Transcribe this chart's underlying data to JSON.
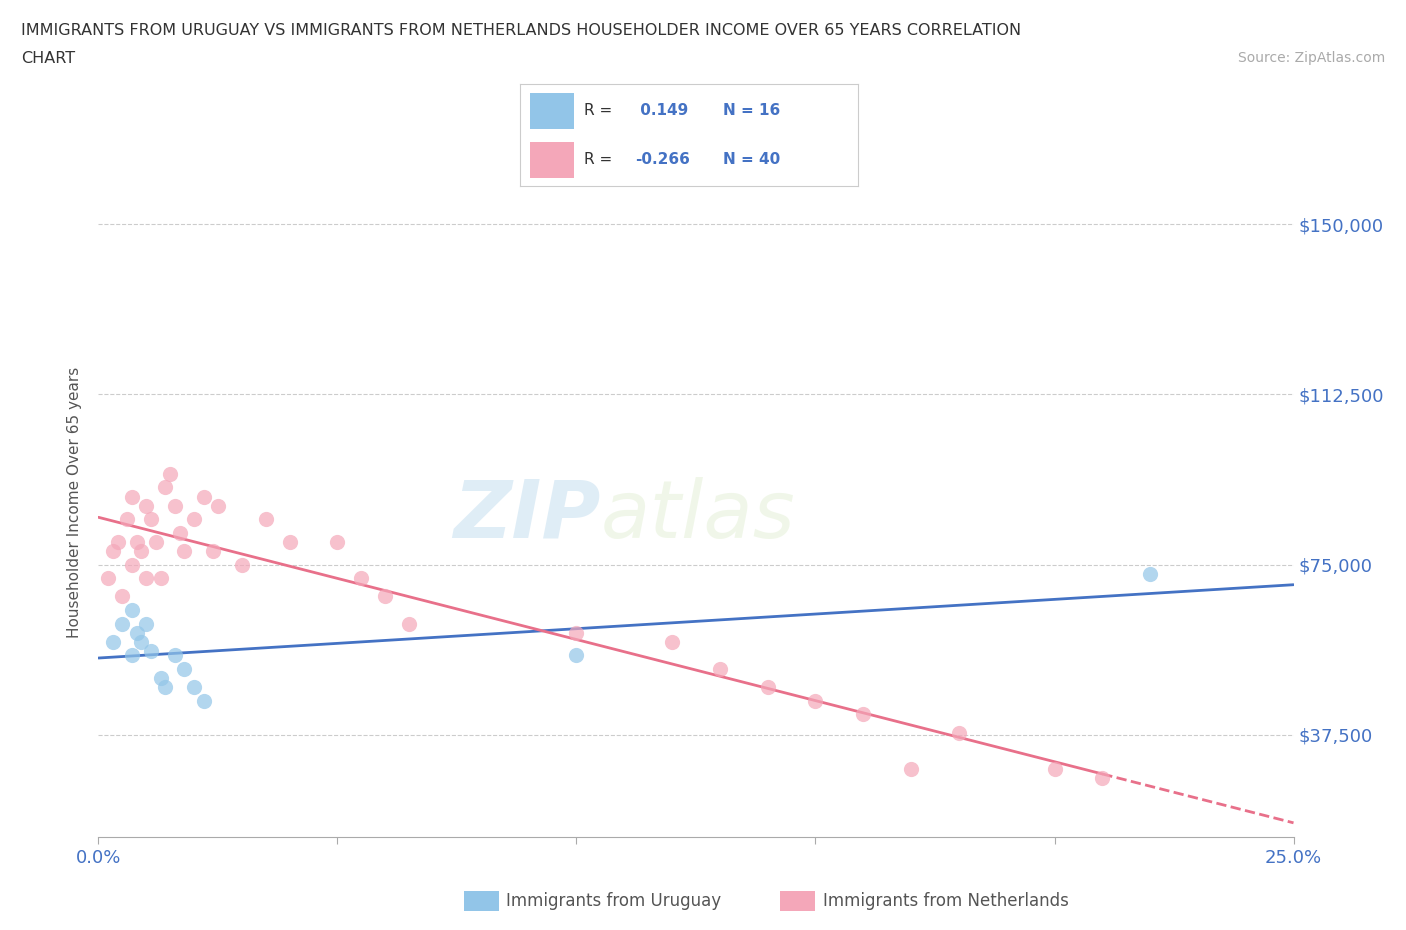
{
  "title_line1": "IMMIGRANTS FROM URUGUAY VS IMMIGRANTS FROM NETHERLANDS HOUSEHOLDER INCOME OVER 65 YEARS CORRELATION",
  "title_line2": "CHART",
  "source_text": "Source: ZipAtlas.com",
  "ylabel": "Householder Income Over 65 years",
  "xlim": [
    0.0,
    0.25
  ],
  "ylim": [
    15000,
    162500
  ],
  "xticks": [
    0.0,
    0.05,
    0.1,
    0.15,
    0.2,
    0.25
  ],
  "xticklabels": [
    "0.0%",
    "",
    "",
    "",
    "",
    "25.0%"
  ],
  "yticks": [
    37500,
    75000,
    112500,
    150000
  ],
  "yticklabels": [
    "$37,500",
    "$75,000",
    "$112,500",
    "$150,000"
  ],
  "color_uruguay": "#92c5e8",
  "color_netherlands": "#f4a7b9",
  "line_color_uruguay": "#4472c4",
  "line_color_netherlands": "#e8708a",
  "R_uruguay": 0.149,
  "N_uruguay": 16,
  "R_netherlands": -0.266,
  "N_netherlands": 40,
  "watermark_zip": "ZIP",
  "watermark_atlas": "atlas",
  "background_color": "#ffffff",
  "uruguay_scatter_x": [
    0.003,
    0.005,
    0.007,
    0.007,
    0.008,
    0.009,
    0.01,
    0.011,
    0.013,
    0.014,
    0.016,
    0.018,
    0.02,
    0.022,
    0.1,
    0.22
  ],
  "uruguay_scatter_y": [
    58000,
    62000,
    55000,
    65000,
    60000,
    58000,
    62000,
    56000,
    50000,
    48000,
    55000,
    52000,
    48000,
    45000,
    55000,
    73000
  ],
  "netherlands_scatter_x": [
    0.002,
    0.003,
    0.004,
    0.005,
    0.006,
    0.007,
    0.007,
    0.008,
    0.009,
    0.01,
    0.01,
    0.011,
    0.012,
    0.013,
    0.014,
    0.015,
    0.016,
    0.017,
    0.018,
    0.02,
    0.022,
    0.024,
    0.025,
    0.03,
    0.035,
    0.04,
    0.05,
    0.055,
    0.06,
    0.065,
    0.1,
    0.12,
    0.13,
    0.14,
    0.15,
    0.16,
    0.17,
    0.18,
    0.2,
    0.21
  ],
  "netherlands_scatter_y": [
    72000,
    78000,
    80000,
    68000,
    85000,
    75000,
    90000,
    80000,
    78000,
    88000,
    72000,
    85000,
    80000,
    72000,
    92000,
    95000,
    88000,
    82000,
    78000,
    85000,
    90000,
    78000,
    88000,
    75000,
    85000,
    80000,
    80000,
    72000,
    68000,
    62000,
    60000,
    58000,
    52000,
    48000,
    45000,
    42000,
    30000,
    38000,
    30000,
    28000
  ]
}
